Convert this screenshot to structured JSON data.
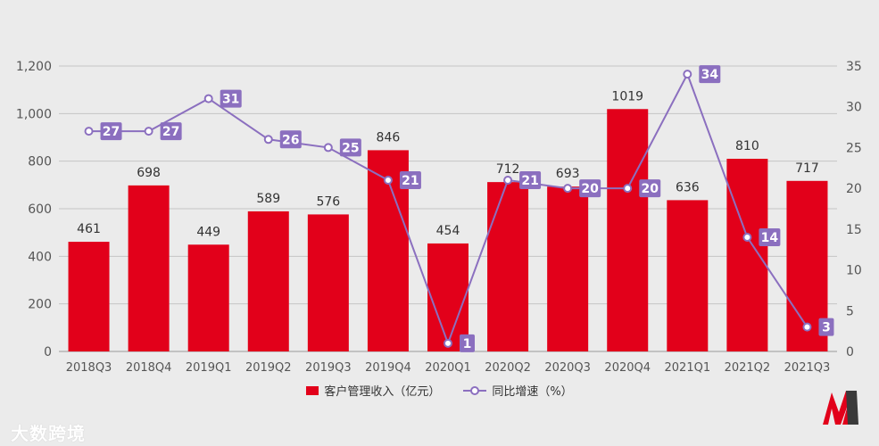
{
  "chart_data": {
    "type": "bar",
    "categories": [
      "2018Q3",
      "2018Q4",
      "2019Q1",
      "2019Q2",
      "2019Q3",
      "2019Q4",
      "2020Q1",
      "2020Q2",
      "2020Q3",
      "2020Q4",
      "2021Q1",
      "2021Q2",
      "2021Q3"
    ],
    "series": [
      {
        "name": "客户管理收入（亿元）",
        "type": "bar",
        "axis": "left",
        "color": "#e2001a",
        "values": [
          461,
          698,
          449,
          589,
          576,
          846,
          454,
          712,
          693,
          1019,
          636,
          810,
          717
        ]
      },
      {
        "name": "同比增速（%）",
        "type": "line",
        "axis": "right",
        "color": "#8b6fbf",
        "values": [
          27,
          27,
          31,
          26,
          25,
          21,
          1,
          21,
          20,
          20,
          34,
          14,
          3
        ]
      }
    ],
    "y_left": {
      "ylim": [
        0,
        1200
      ],
      "ticks": [
        "0",
        "200",
        "400",
        "600",
        "800",
        "1,000",
        "1,200"
      ],
      "tick_values": [
        0,
        200,
        400,
        600,
        800,
        1000,
        1200
      ]
    },
    "y_right": {
      "ylim": [
        0,
        35
      ],
      "ticks": [
        "0",
        "5",
        "10",
        "15",
        "20",
        "25",
        "30",
        "35"
      ],
      "tick_values": [
        0,
        5,
        10,
        15,
        20,
        25,
        30,
        35
      ]
    },
    "grid": true,
    "legend_position": "bottom"
  },
  "watermark": "大数跨境"
}
